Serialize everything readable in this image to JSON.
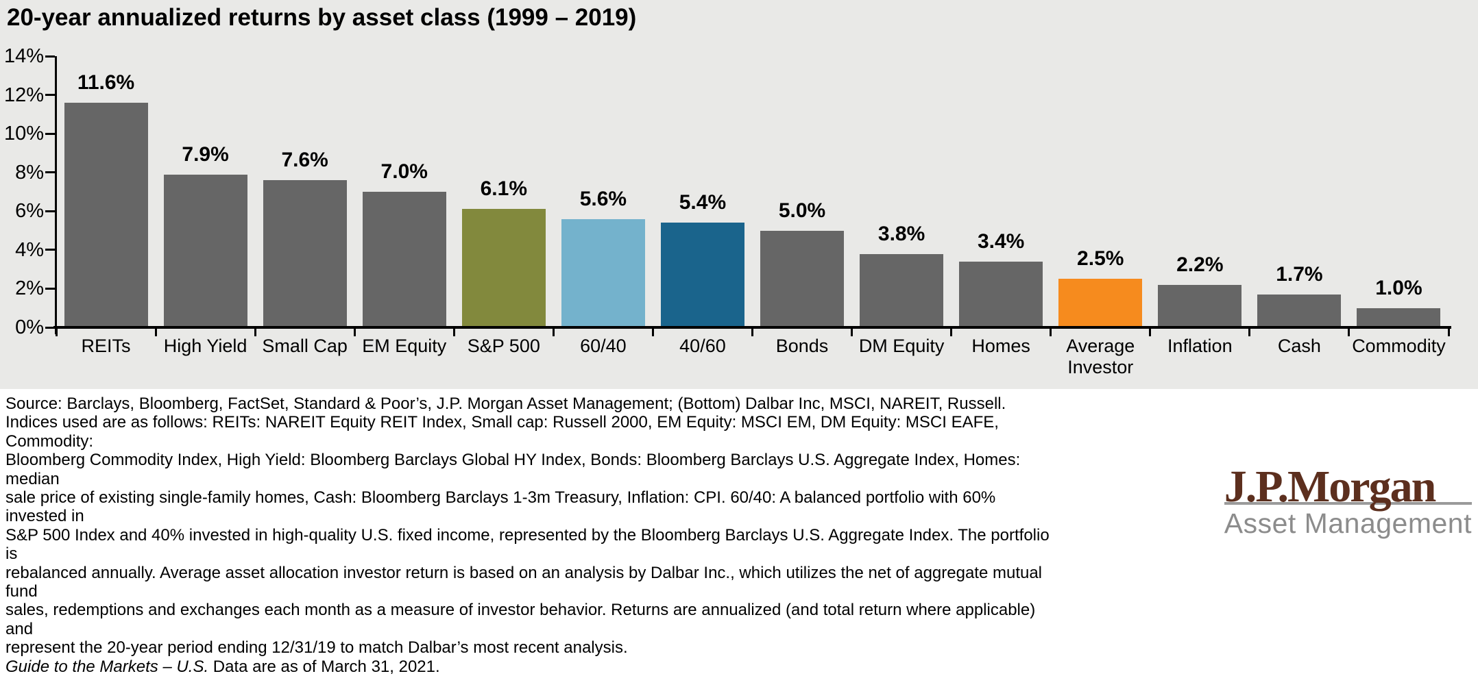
{
  "title": "20-year annualized returns by asset class (1999 – 2019)",
  "chart_data": {
    "type": "bar",
    "title": "20-year annualized returns by asset class (1999 – 2019)",
    "categories": [
      "REITs",
      "High Yield",
      "Small Cap",
      "EM Equity",
      "S&P 500",
      "60/40",
      "40/60",
      "Bonds",
      "DM Equity",
      "Homes",
      "Average Investor",
      "Inflation",
      "Cash",
      "Commodity"
    ],
    "values": [
      11.6,
      7.9,
      7.6,
      7.0,
      6.1,
      5.6,
      5.4,
      5.0,
      3.8,
      3.4,
      2.5,
      2.2,
      1.7,
      1.0
    ],
    "value_labels": [
      "11.6%",
      "7.9%",
      "7.6%",
      "7.0%",
      "6.1%",
      "5.6%",
      "5.4%",
      "5.0%",
      "3.8%",
      "3.4%",
      "2.5%",
      "2.2%",
      "1.7%",
      "1.0%"
    ],
    "bar_colors": [
      "#666666",
      "#666666",
      "#666666",
      "#666666",
      "#82893D",
      "#74B2CC",
      "#1A648C",
      "#666666",
      "#666666",
      "#666666",
      "#F68B1E",
      "#666666",
      "#666666",
      "#666666"
    ],
    "xlabel": "",
    "ylabel": "",
    "ylim": [
      0,
      14
    ],
    "yticks": [
      0,
      2,
      4,
      6,
      8,
      10,
      12,
      14
    ],
    "ytick_labels": [
      "0%",
      "2%",
      "4%",
      "6%",
      "8%",
      "10%",
      "12%",
      "14%"
    ],
    "grid": false,
    "legend": null
  },
  "colors": {
    "panel_background": "#E9E9E7",
    "bar_default": "#666666",
    "bar_sp500": "#82893D",
    "bar_60_40": "#74B2CC",
    "bar_40_60": "#1A648C",
    "bar_average_investor": "#F68B1E",
    "axis": "#000000",
    "logo_brown": "#5C2F1E",
    "logo_gray": "#8C8C8C"
  },
  "footnote": {
    "lines": [
      "Source: Barclays, Bloomberg, FactSet, Standard & Poor’s, J.P. Morgan Asset Management; (Bottom) Dalbar Inc, MSCI, NAREIT, Russell.",
      "Indices used are as follows: REITs: NAREIT Equity REIT Index, Small cap: Russell 2000, EM Equity: MSCI EM, DM Equity: MSCI EAFE, Commodity:",
      "Bloomberg Commodity Index, High Yield: Bloomberg Barclays Global HY Index, Bonds: Bloomberg Barclays U.S. Aggregate Index, Homes: median",
      "sale price of existing single-family homes, Cash: Bloomberg Barclays 1-3m Treasury, Inflation: CPI. 60/40: A balanced portfolio with 60% invested in",
      "S&P 500 Index and 40% invested in high-quality U.S. fixed income, represented by the Bloomberg Barclays U.S. Aggregate Index. The portfolio is",
      "rebalanced annually. Average asset allocation investor return is based on an analysis by Dalbar Inc., which utilizes the net of aggregate mutual fund",
      "sales, redemptions and exchanges each month as a measure of investor behavior. Returns are annualized (and total return where applicable) and",
      "represent the 20-year period ending 12/31/19 to match Dalbar’s most recent analysis."
    ],
    "gtm_italic": "Guide to the Markets – U.S.",
    "gtm_rest": " Data are as of March 31, 2021."
  },
  "logo": {
    "name": "J.P.Morgan",
    "subtitle": "Asset Management"
  }
}
